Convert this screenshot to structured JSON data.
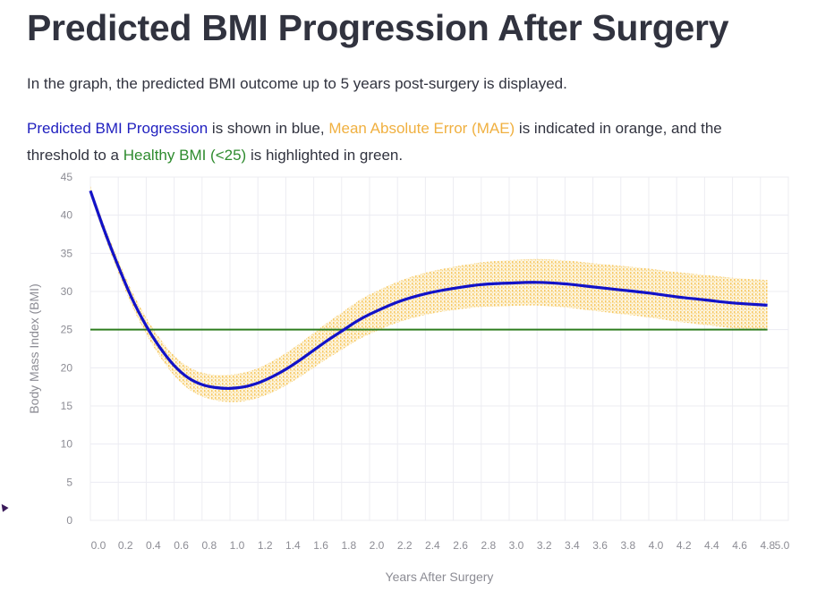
{
  "page": {
    "title": "Predicted BMI Progression After Surgery",
    "intro": "In the graph, the predicted BMI outcome up to 5 years post-surgery is displayed.",
    "legend_text": {
      "blue_label": "Predicted BMI Progression",
      "part1": " is shown in blue, ",
      "orange_label": "Mean Absolute Error (MAE)",
      "part2": " is indicated in orange, and the",
      "part3": "threshold to a ",
      "green_label": "Healthy BMI (<25)",
      "part4": " is highlighted in green."
    }
  },
  "colors": {
    "prediction": "#1212c8",
    "mae": "#f5c04a",
    "threshold": "#2e7d1e",
    "grid": "#ececf2",
    "text": "#31333f"
  },
  "chart_data": {
    "type": "line",
    "title": "",
    "xlabel": "Years After Surgery",
    "ylabel": "Body Mass Index (BMI)",
    "xlim": [
      0,
      5
    ],
    "ylim": [
      0,
      45
    ],
    "grid": true,
    "x_ticks": [
      "0.0",
      "0.2",
      "0.4",
      "0.6",
      "0.8",
      "1.0",
      "1.2",
      "1.4",
      "1.6",
      "1.8",
      "2.0",
      "2.2",
      "2.4",
      "2.6",
      "2.8",
      "3.0",
      "3.2",
      "3.4",
      "3.6",
      "3.8",
      "4.0",
      "4.2",
      "4.4",
      "4.6",
      "4.8",
      "5.0"
    ],
    "y_ticks": [
      "0",
      "5",
      "10",
      "15",
      "20",
      "25",
      "30",
      "35",
      "40",
      "45"
    ],
    "series": [
      {
        "name": "Predicted BMI Progression",
        "x": [
          0.0,
          0.1,
          0.2,
          0.3,
          0.4,
          0.5,
          0.6,
          0.7,
          0.8,
          0.9,
          1.0,
          1.1,
          1.2,
          1.3,
          1.4,
          1.5,
          1.6,
          1.7,
          1.8,
          1.9,
          2.0,
          2.2,
          2.4,
          2.6,
          2.8,
          3.0,
          3.2,
          3.4,
          3.6,
          3.8,
          4.0,
          4.2,
          4.4,
          4.6,
          4.85
        ],
        "y": [
          43.2,
          38.0,
          33.3,
          29.0,
          25.5,
          22.6,
          20.3,
          18.7,
          17.8,
          17.4,
          17.3,
          17.5,
          18.0,
          18.8,
          19.8,
          21.0,
          22.3,
          23.6,
          24.8,
          26.0,
          27.0,
          28.6,
          29.7,
          30.4,
          30.9,
          31.1,
          31.2,
          31.0,
          30.6,
          30.2,
          29.8,
          29.3,
          28.9,
          28.5,
          28.2
        ]
      },
      {
        "name": "Mean Absolute Error (MAE)",
        "type": "band",
        "x": [
          0.0,
          0.5,
          1.0,
          1.5,
          2.0,
          2.5,
          3.0,
          3.5,
          4.0,
          4.5,
          4.85
        ],
        "half_width": [
          0.6,
          1.2,
          1.8,
          2.2,
          2.6,
          2.8,
          3.0,
          3.1,
          3.2,
          3.3,
          3.3
        ]
      },
      {
        "name": "Healthy BMI (<25)",
        "type": "hline",
        "x": [
          0.0,
          4.85
        ],
        "y": [
          25,
          25
        ]
      }
    ]
  }
}
